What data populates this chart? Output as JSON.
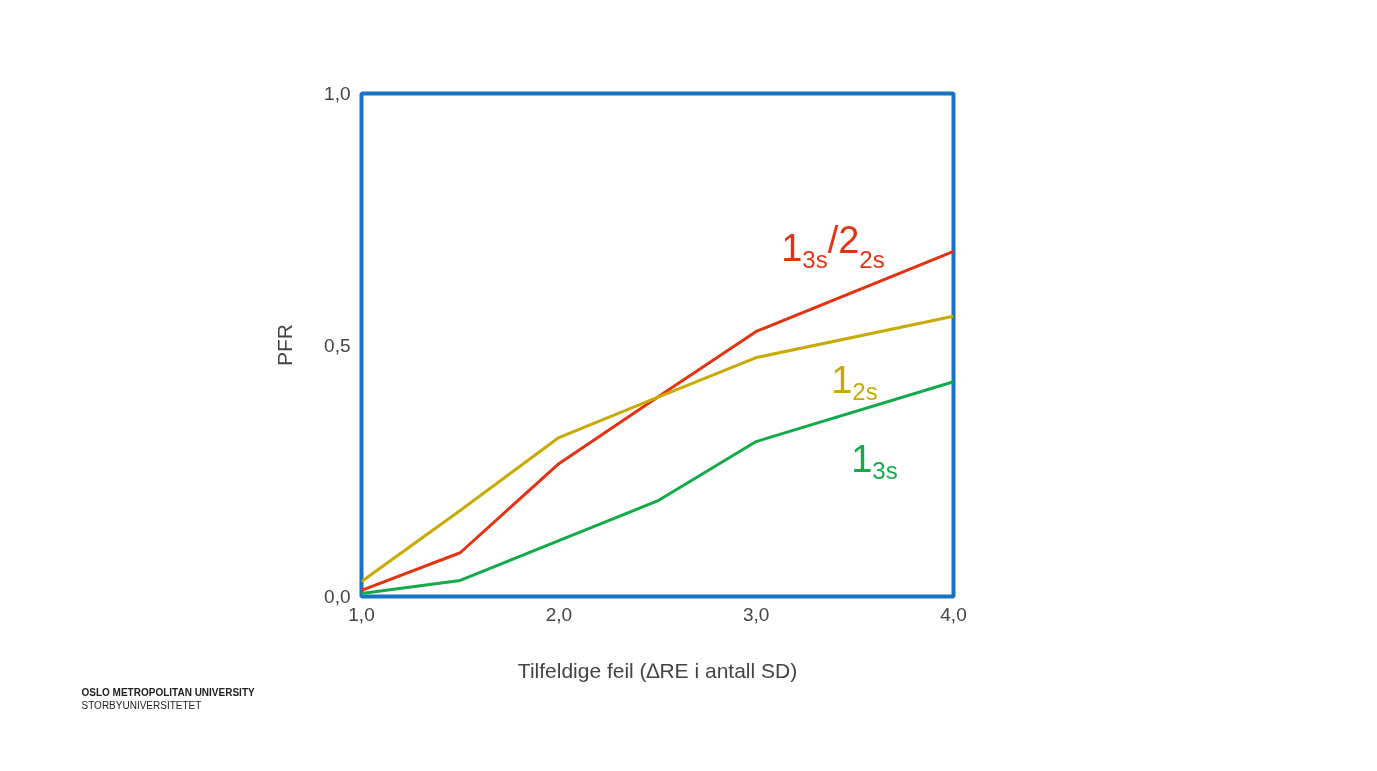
{
  "chart_data": {
    "type": "line",
    "xlabel": "Tilfeldige feil (∆RE i antall SD)",
    "ylabel": "PFR",
    "x": [
      1,
      1.5,
      2,
      2.5,
      3,
      4
    ],
    "series": [
      {
        "name": "1$_{3s}$/2$_{2s}$",
        "color": "#e03412",
        "values": [
          0.012,
          0.087,
          0.264,
          0.396,
          0.527,
          0.686
        ]
      },
      {
        "name": "1$_{2s}$",
        "color": "#c8aa00",
        "values": [
          0.03,
          0.171,
          0.316,
          0.396,
          0.475,
          0.557
        ]
      },
      {
        "name": "1$_{3s}$",
        "color": "#12aa4a",
        "values": [
          0.006,
          0.032,
          0.111,
          0.19,
          0.308,
          0.427
        ]
      }
    ],
    "xlim": [
      1,
      4
    ],
    "ylim": [
      0,
      1
    ],
    "xticks": [
      {
        "value": 1,
        "label": "1,0"
      },
      {
        "value": 2,
        "label": "2,0"
      },
      {
        "value": 3,
        "label": "3,0"
      },
      {
        "value": 4,
        "label": "4,0"
      }
    ],
    "yticks": [
      {
        "value": 0,
        "label": "0,0"
      },
      {
        "value": 0.5,
        "label": "0,5"
      },
      {
        "value": 1,
        "label": "1,0"
      }
    ],
    "grid": false,
    "legend": false,
    "marker": "none",
    "line_style": "solid",
    "annotations": [
      "OSLO METROPOLITAN UNIVERSITY",
      "STORBYUNIVERSITETET"
    ]
  }
}
